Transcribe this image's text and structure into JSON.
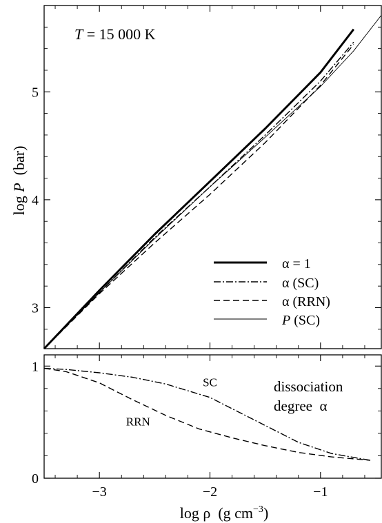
{
  "chart_data": [
    {
      "type": "line",
      "annotation": {
        "T_symbol": "T",
        "T_rest": " = 15 000 K"
      },
      "ylabel": {
        "prefix": "log ",
        "sym": "P",
        "unit": "  (bar)"
      },
      "xlabel": "",
      "xlim": [
        -3.5,
        -0.45
      ],
      "ylim": [
        2.62,
        5.8
      ],
      "yticks": [
        {
          "v": 3,
          "label": "3"
        },
        {
          "v": 4,
          "label": "4"
        },
        {
          "v": 5,
          "label": "5"
        }
      ],
      "legend": {
        "position": "bottom-right",
        "entries": [
          {
            "series": 0,
            "label_sym": "α",
            "label_rest": " = 1"
          },
          {
            "series": 1,
            "label_sym": "α",
            "label_rest": " (SC)"
          },
          {
            "series": 2,
            "label_sym": "α",
            "label_rest": " (RRN)"
          },
          {
            "series": 3,
            "label_sym": "P",
            "label_rest": " (SC)"
          }
        ]
      },
      "series": [
        {
          "name": "α = 1",
          "style": "thick",
          "x": [
            -3.5,
            -3.0,
            -2.5,
            -2.0,
            -1.5,
            -1.0,
            -0.7
          ],
          "y": [
            2.62,
            3.16,
            3.68,
            4.17,
            4.66,
            5.18,
            5.58
          ]
        },
        {
          "name": "α (SC)",
          "style": "dashdot",
          "x": [
            -3.5,
            -3.0,
            -2.5,
            -2.0,
            -1.5,
            -1.0,
            -0.7
          ],
          "y": [
            2.62,
            3.14,
            3.65,
            4.12,
            4.6,
            5.1,
            5.46
          ]
        },
        {
          "name": "α (RRN)",
          "style": "dashed",
          "x": [
            -3.5,
            -3.0,
            -2.5,
            -2.0,
            -1.5,
            -1.0,
            -0.7
          ],
          "y": [
            2.62,
            3.13,
            3.6,
            4.05,
            4.53,
            5.06,
            5.44
          ]
        },
        {
          "name": "P (SC)",
          "style": "thin",
          "x": [
            -3.5,
            -3.0,
            -2.5,
            -2.0,
            -1.5,
            -1.0,
            -0.7,
            -0.45
          ],
          "y": [
            2.62,
            3.14,
            3.64,
            4.12,
            4.58,
            5.05,
            5.38,
            5.71
          ]
        }
      ]
    },
    {
      "type": "line",
      "annotation": {
        "line1": "dissociation",
        "line2_prefix": "degree  ",
        "line2_sym": "α"
      },
      "xlabel": {
        "prefix": "log ",
        "sym": "ρ",
        "unit_pre": "  (g cm",
        "unit_exp": "−3",
        "unit_post": ")"
      },
      "ylabel": "",
      "xlim": [
        -3.5,
        -0.45
      ],
      "ylim": [
        0,
        1.1
      ],
      "xticks": [
        {
          "v": -3,
          "label": "−3"
        },
        {
          "v": -2,
          "label": "−2"
        },
        {
          "v": -1,
          "label": "−1"
        }
      ],
      "yticks": [
        {
          "v": 0,
          "label": "0"
        },
        {
          "v": 1,
          "label": "1"
        }
      ],
      "series": [
        {
          "name": "SC",
          "style": "dashdot",
          "label_x": -2.0,
          "label_y": 0.82,
          "x": [
            -3.5,
            -3.3,
            -3.0,
            -2.7,
            -2.4,
            -2.0,
            -1.6,
            -1.2,
            -0.9,
            -0.55
          ],
          "y": [
            0.98,
            0.97,
            0.94,
            0.9,
            0.84,
            0.72,
            0.52,
            0.32,
            0.22,
            0.16
          ]
        },
        {
          "name": "RRN",
          "style": "dashed",
          "label_x": -2.65,
          "label_y": 0.47,
          "x": [
            -3.5,
            -3.3,
            -3.0,
            -2.7,
            -2.4,
            -2.1,
            -1.8,
            -1.5,
            -1.2,
            -0.9,
            -0.55
          ],
          "y": [
            0.98,
            0.95,
            0.85,
            0.7,
            0.56,
            0.44,
            0.36,
            0.29,
            0.23,
            0.19,
            0.16
          ]
        }
      ]
    }
  ]
}
